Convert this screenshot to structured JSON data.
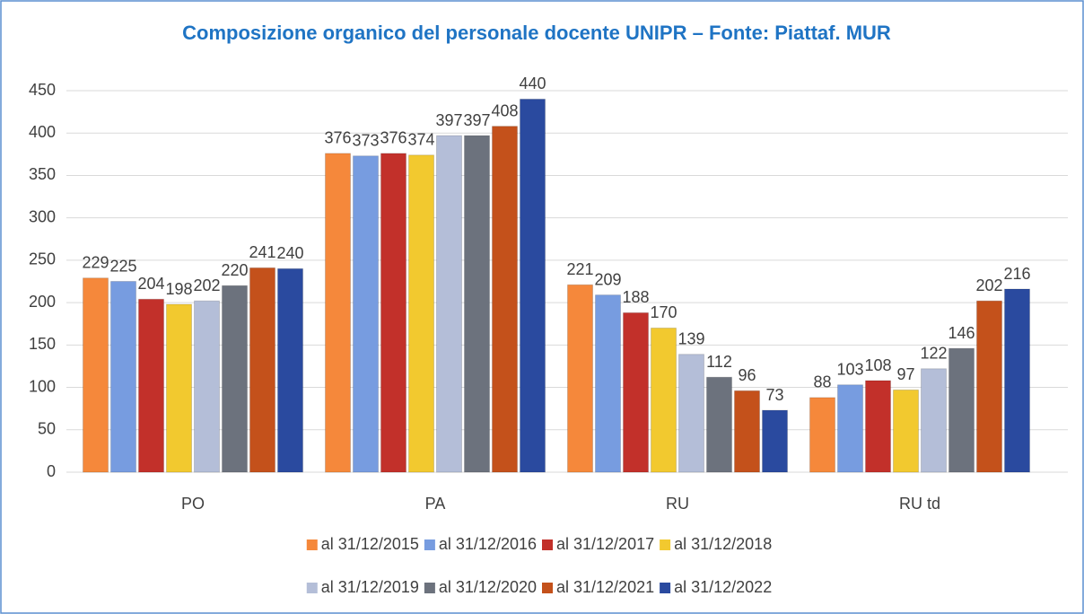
{
  "chart_data": {
    "type": "bar",
    "title": "Composizione organico del personale docente UNIPR – Fonte: Piattaf. MUR",
    "categories": [
      "PO",
      "PA",
      "RU",
      "RU td"
    ],
    "series": [
      {
        "name": "al 31/12/2015",
        "color": "#f5883b",
        "values": [
          229,
          376,
          221,
          88
        ]
      },
      {
        "name": "al 31/12/2016",
        "color": "#779ce0",
        "values": [
          225,
          373,
          209,
          103
        ]
      },
      {
        "name": "al 31/12/2017",
        "color": "#c2302a",
        "values": [
          204,
          376,
          188,
          108
        ]
      },
      {
        "name": "al 31/12/2018",
        "color": "#f2c92f",
        "values": [
          198,
          374,
          170,
          97
        ]
      },
      {
        "name": "al 31/12/2019",
        "color": "#b4bed8",
        "values": [
          202,
          397,
          139,
          122
        ]
      },
      {
        "name": "al 31/12/2020",
        "color": "#6c727d",
        "values": [
          220,
          397,
          112,
          146
        ]
      },
      {
        "name": "al 31/12/2021",
        "color": "#c4511b",
        "values": [
          241,
          408,
          96,
          202
        ]
      },
      {
        "name": "al 31/12/2022",
        "color": "#2a4a9f",
        "values": [
          240,
          440,
          73,
          216
        ]
      }
    ],
    "ylim": [
      0,
      450
    ],
    "yticks": [
      0,
      50,
      100,
      150,
      200,
      250,
      300,
      350,
      400,
      450
    ],
    "grid": true
  }
}
